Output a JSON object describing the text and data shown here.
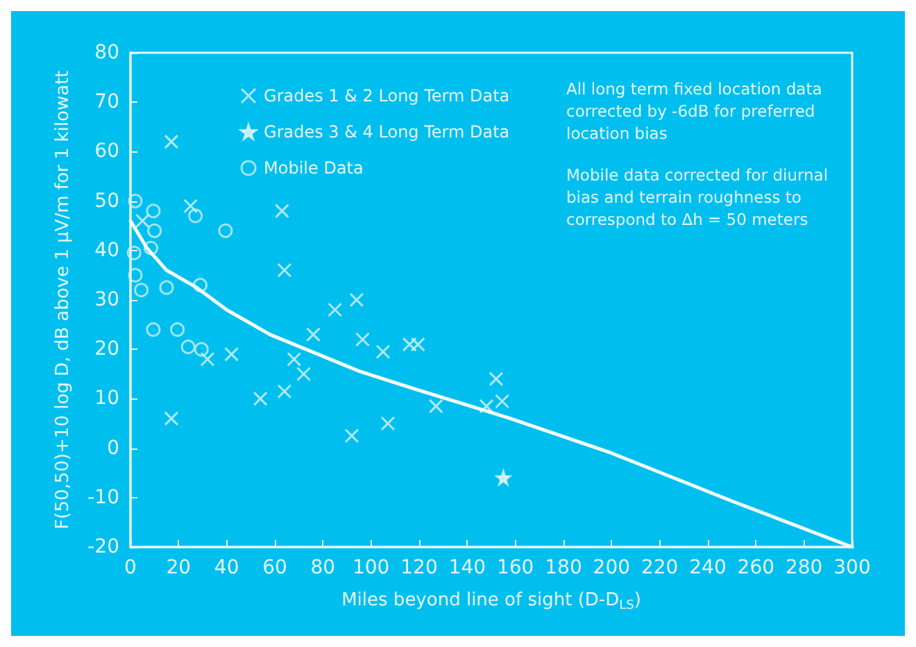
{
  "chart_data": {
    "type": "scatter",
    "xlabel": "Miles beyond line of sight (D-D$_{LS}$)",
    "ylabel": "F(50,50)+10 log D, dB above 1 μV/m for 1 kilowatt",
    "xlim": [
      0,
      300
    ],
    "xticks": [
      0,
      20,
      40,
      60,
      80,
      100,
      120,
      140,
      160,
      180,
      200,
      220,
      240,
      260,
      280,
      300
    ],
    "ylim": [
      -20,
      80
    ],
    "yticks": [
      -20,
      -10,
      0,
      10,
      20,
      30,
      40,
      50,
      60,
      70,
      80
    ],
    "grid": false,
    "legend": "top",
    "annotations": [
      "All long term fixed location data corrected by -6dB for preferred location bias",
      "Mobile data corrected for diurnal bias and terrain roughness to correspond to Δh = 50 meters"
    ],
    "series": [
      {
        "name": "Grades 1 & 2 Long Term Data",
        "marker": "cross",
        "color": "#d8f2f6",
        "x": [
          17,
          25,
          5,
          63,
          64,
          32,
          42,
          17,
          54,
          64,
          68,
          72,
          76,
          85,
          94,
          96.5,
          105,
          92,
          107,
          116,
          119.5,
          127,
          148,
          152,
          154.5
        ],
        "values": [
          62,
          49,
          46,
          48,
          36,
          18,
          19,
          6,
          10,
          11.5,
          18,
          15,
          23,
          28,
          30,
          22,
          19.5,
          2.5,
          5,
          21,
          21,
          8.5,
          8.5,
          14,
          9.5
        ]
      },
      {
        "name": "Grades 3 & 4 Long Term Data",
        "marker": "star",
        "color": "#e8f8fa",
        "x": [
          155
        ],
        "values": [
          -6
        ]
      },
      {
        "name": "Mobile Data",
        "marker": "circle",
        "color": "#c6eef4",
        "x": [
          2,
          9.5,
          10,
          8.5,
          1.5,
          2,
          4.5,
          15,
          27,
          29,
          39.5,
          9.5,
          19.5,
          24,
          29.5
        ],
        "values": [
          50,
          48,
          44,
          40.5,
          39.5,
          35,
          32,
          32.5,
          47,
          33,
          44,
          24,
          24,
          20.5,
          20
        ]
      },
      {
        "type": "line",
        "marker": "none",
        "color": "#f4fcfd",
        "x": [
          0,
          6.7,
          15,
          27.5,
          40,
          58,
          95.5,
          118,
          148,
          158,
          200,
          250,
          300
        ],
        "values": [
          46,
          40.6,
          36,
          32.5,
          28,
          23,
          15.5,
          12,
          7.5,
          6,
          -1,
          -10.7,
          -20
        ]
      }
    ]
  }
}
